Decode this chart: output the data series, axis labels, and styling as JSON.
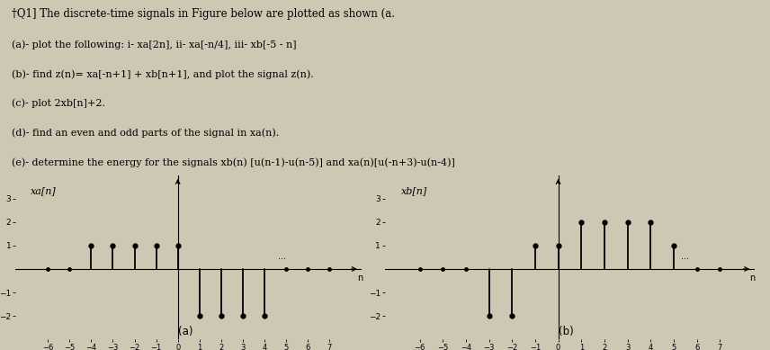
{
  "title_text": "†Q1] The discrete-time signals in Figure below are plotted as shown (a.",
  "line1": "(a)- plot the following: i- xa[2n], ii- xa[-n/4], iii- xb[-5 - n]",
  "line2": "(b)- find z(n)= xa[-n+1] + xb[n+1], and plot the signal z(n).",
  "line3": "(c)- plot 2xb[n]+2.",
  "line4": "(d)- find an even and odd parts of the signal in xa(n).",
  "line5": "(e)- determine the energy for the signals xb(n) [u(n-1)-u(n-5)] and xa(n)[u(-n+3)-u(n-4)]",
  "xa_label": "xa[n]",
  "xb_label": "xb[n]",
  "plot_a_label": "(a)",
  "plot_b_label": "(b)",
  "xa_n": [
    -4,
    -3,
    -2,
    -1,
    0,
    1,
    2,
    3,
    4
  ],
  "xa_val": [
    1,
    1,
    1,
    1,
    1,
    -2,
    -2,
    -2,
    -2
  ],
  "xb_n": [
    -3,
    -2,
    -1,
    0,
    1,
    2,
    3,
    4,
    5
  ],
  "xb_val": [
    -2,
    -2,
    1,
    1,
    2,
    2,
    2,
    2,
    1
  ],
  "xa_xlim": [
    -7.5,
    8.5
  ],
  "xa_ylim": [
    -3.0,
    4.0
  ],
  "xb_xlim": [
    -7.5,
    8.5
  ],
  "xb_ylim": [
    -3.0,
    4.0
  ],
  "xa_xticks": [
    -6,
    -5,
    -4,
    -3,
    -2,
    -1,
    0,
    1,
    2,
    3,
    4,
    5,
    6,
    7
  ],
  "xb_xticks": [
    -6,
    -5,
    -4,
    -3,
    -2,
    -1,
    0,
    1,
    2,
    3,
    4,
    5,
    6,
    7
  ],
  "xa_yticks": [
    -2,
    -1,
    1,
    2,
    3
  ],
  "xb_yticks": [
    -2,
    -1,
    1,
    2,
    3
  ],
  "bg_color": "#ccc8b4",
  "stem_color": "black",
  "text_color": "black"
}
